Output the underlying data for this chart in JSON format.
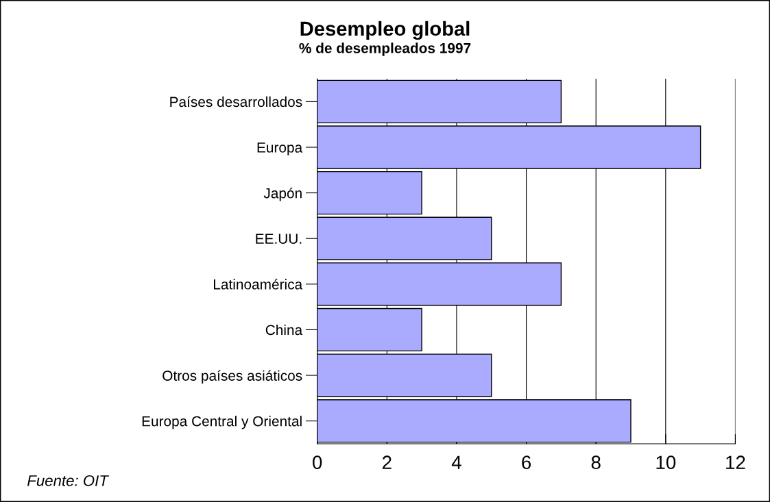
{
  "chart_data": {
    "type": "bar",
    "orientation": "horizontal",
    "title": "Desempleo global",
    "subtitle": "% de desempleados 1997",
    "categories": [
      "Países desarrollados",
      "Europa",
      "Japón",
      "EE.UU.",
      "Latinoamérica",
      "China",
      "Otros países asiáticos",
      "Europa Central y Oriental"
    ],
    "values": [
      7,
      11,
      3,
      5,
      7,
      3,
      5,
      9
    ],
    "color": "#aaaaff",
    "xlim": [
      0,
      12
    ],
    "xticks": [
      0,
      2,
      4,
      6,
      8,
      10,
      12
    ],
    "grid": "x",
    "annotations": [
      "Fuente: OIT"
    ]
  }
}
